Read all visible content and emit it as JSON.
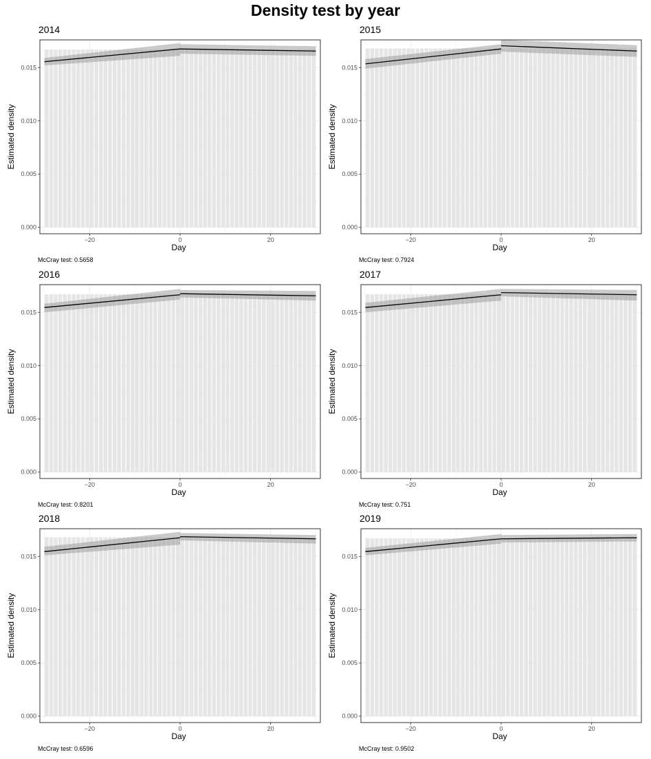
{
  "title": "Density test by year",
  "chart_data": [
    {
      "type": "bar",
      "title": "2014",
      "xlabel": "Day",
      "ylabel": "Estimated density",
      "caption": "McCray test: 0.5658",
      "bins": {
        "start": -30,
        "end": 29,
        "width": 1
      },
      "bar_value": 0.0167,
      "xlim": [
        -31,
        31
      ],
      "ylim": [
        -0.0006,
        0.0176
      ],
      "xticks": [
        -20,
        0,
        20
      ],
      "yticks": [
        "0.000",
        "0.005",
        "0.010",
        "0.015"
      ],
      "grid": true,
      "fit_left": {
        "x": [
          -30,
          0
        ],
        "y": [
          0.01555,
          0.01675
        ],
        "ci_low": [
          0.0152,
          0.0161
        ],
        "ci_high": [
          0.0159,
          0.0173
        ]
      },
      "fit_right": {
        "x": [
          0,
          30
        ],
        "y": [
          0.01675,
          0.01655
        ],
        "ci_low": [
          0.0163,
          0.0161
        ],
        "ci_high": [
          0.0172,
          0.017
        ]
      }
    },
    {
      "type": "bar",
      "title": "2015",
      "xlabel": "Day",
      "ylabel": "Estimated density",
      "caption": "McCray test: 0.7924",
      "bins": {
        "start": -30,
        "end": 29,
        "width": 1
      },
      "bar_value": 0.0168,
      "xlim": [
        -31,
        31
      ],
      "ylim": [
        -0.0006,
        0.0176
      ],
      "xticks": [
        -20,
        0,
        20
      ],
      "yticks": [
        "0.000",
        "0.005",
        "0.010",
        "0.015"
      ],
      "grid": true,
      "fit_left": {
        "x": [
          -30,
          0
        ],
        "y": [
          0.01535,
          0.01675
        ],
        "ci_low": [
          0.0149,
          0.0163
        ],
        "ci_high": [
          0.0158,
          0.0172
        ]
      },
      "fit_right": {
        "x": [
          0,
          30
        ],
        "y": [
          0.01705,
          0.01655
        ],
        "ci_low": [
          0.0165,
          0.016
        ],
        "ci_high": [
          0.0176,
          0.0171
        ]
      }
    },
    {
      "type": "bar",
      "title": "2016",
      "xlabel": "Day",
      "ylabel": "Estimated density",
      "caption": "McCray test: 0.8201",
      "bins": {
        "start": -30,
        "end": 29,
        "width": 1
      },
      "bar_value": 0.0167,
      "xlim": [
        -31,
        31
      ],
      "ylim": [
        -0.0006,
        0.0176
      ],
      "xticks": [
        -20,
        0,
        20
      ],
      "yticks": [
        "0.000",
        "0.005",
        "0.010",
        "0.015"
      ],
      "grid": true,
      "fit_left": {
        "x": [
          -30,
          0
        ],
        "y": [
          0.01545,
          0.01665
        ],
        "ci_low": [
          0.015,
          0.0162
        ],
        "ci_high": [
          0.0158,
          0.0172
        ]
      },
      "fit_right": {
        "x": [
          0,
          30
        ],
        "y": [
          0.01675,
          0.01655
        ],
        "ci_low": [
          0.0164,
          0.0161
        ],
        "ci_high": [
          0.0171,
          0.017
        ]
      }
    },
    {
      "type": "bar",
      "title": "2017",
      "xlabel": "Day",
      "ylabel": "Estimated density",
      "caption": "McCray test: 0.751",
      "bins": {
        "start": -30,
        "end": 29,
        "width": 1
      },
      "bar_value": 0.0167,
      "xlim": [
        -31,
        31
      ],
      "ylim": [
        -0.0006,
        0.0176
      ],
      "xticks": [
        -20,
        0,
        20
      ],
      "yticks": [
        "0.000",
        "0.005",
        "0.010",
        "0.015"
      ],
      "grid": true,
      "fit_left": {
        "x": [
          -30,
          0
        ],
        "y": [
          0.01545,
          0.01665
        ],
        "ci_low": [
          0.015,
          0.0161
        ],
        "ci_high": [
          0.0159,
          0.0172
        ]
      },
      "fit_right": {
        "x": [
          0,
          30
        ],
        "y": [
          0.01685,
          0.01665
        ],
        "ci_low": [
          0.0165,
          0.0161
        ],
        "ci_high": [
          0.0172,
          0.0171
        ]
      }
    },
    {
      "type": "bar",
      "title": "2018",
      "xlabel": "Day",
      "ylabel": "Estimated density",
      "caption": "McCray test: 0.6596",
      "bins": {
        "start": -30,
        "end": 29,
        "width": 1
      },
      "bar_value": 0.0168,
      "xlim": [
        -31,
        31
      ],
      "ylim": [
        -0.0006,
        0.0176
      ],
      "xticks": [
        -20,
        0,
        20
      ],
      "yticks": [
        "0.000",
        "0.005",
        "0.010",
        "0.015"
      ],
      "grid": true,
      "fit_left": {
        "x": [
          -30,
          0
        ],
        "y": [
          0.01545,
          0.01675
        ],
        "ci_low": [
          0.0151,
          0.0161
        ],
        "ci_high": [
          0.0159,
          0.0173
        ]
      },
      "fit_right": {
        "x": [
          0,
          30
        ],
        "y": [
          0.01685,
          0.01665
        ],
        "ci_low": [
          0.0165,
          0.0162
        ],
        "ci_high": [
          0.0172,
          0.017
        ]
      }
    },
    {
      "type": "bar",
      "title": "2019",
      "xlabel": "Day",
      "ylabel": "Estimated density",
      "caption": "McCray test: 0.9502",
      "bins": {
        "start": -30,
        "end": 29,
        "width": 1
      },
      "bar_value": 0.0167,
      "xlim": [
        -31,
        31
      ],
      "ylim": [
        -0.0006,
        0.0176
      ],
      "xticks": [
        -20,
        0,
        20
      ],
      "yticks": [
        "0.000",
        "0.005",
        "0.010",
        "0.015"
      ],
      "grid": true,
      "fit_left": {
        "x": [
          -30,
          0
        ],
        "y": [
          0.01545,
          0.01665
        ],
        "ci_low": [
          0.0151,
          0.0162
        ],
        "ci_high": [
          0.0158,
          0.0171
        ]
      },
      "fit_right": {
        "x": [
          0,
          30
        ],
        "y": [
          0.01665,
          0.01675
        ],
        "ci_low": [
          0.0163,
          0.0164
        ],
        "ci_high": [
          0.017,
          0.0171
        ]
      }
    }
  ]
}
